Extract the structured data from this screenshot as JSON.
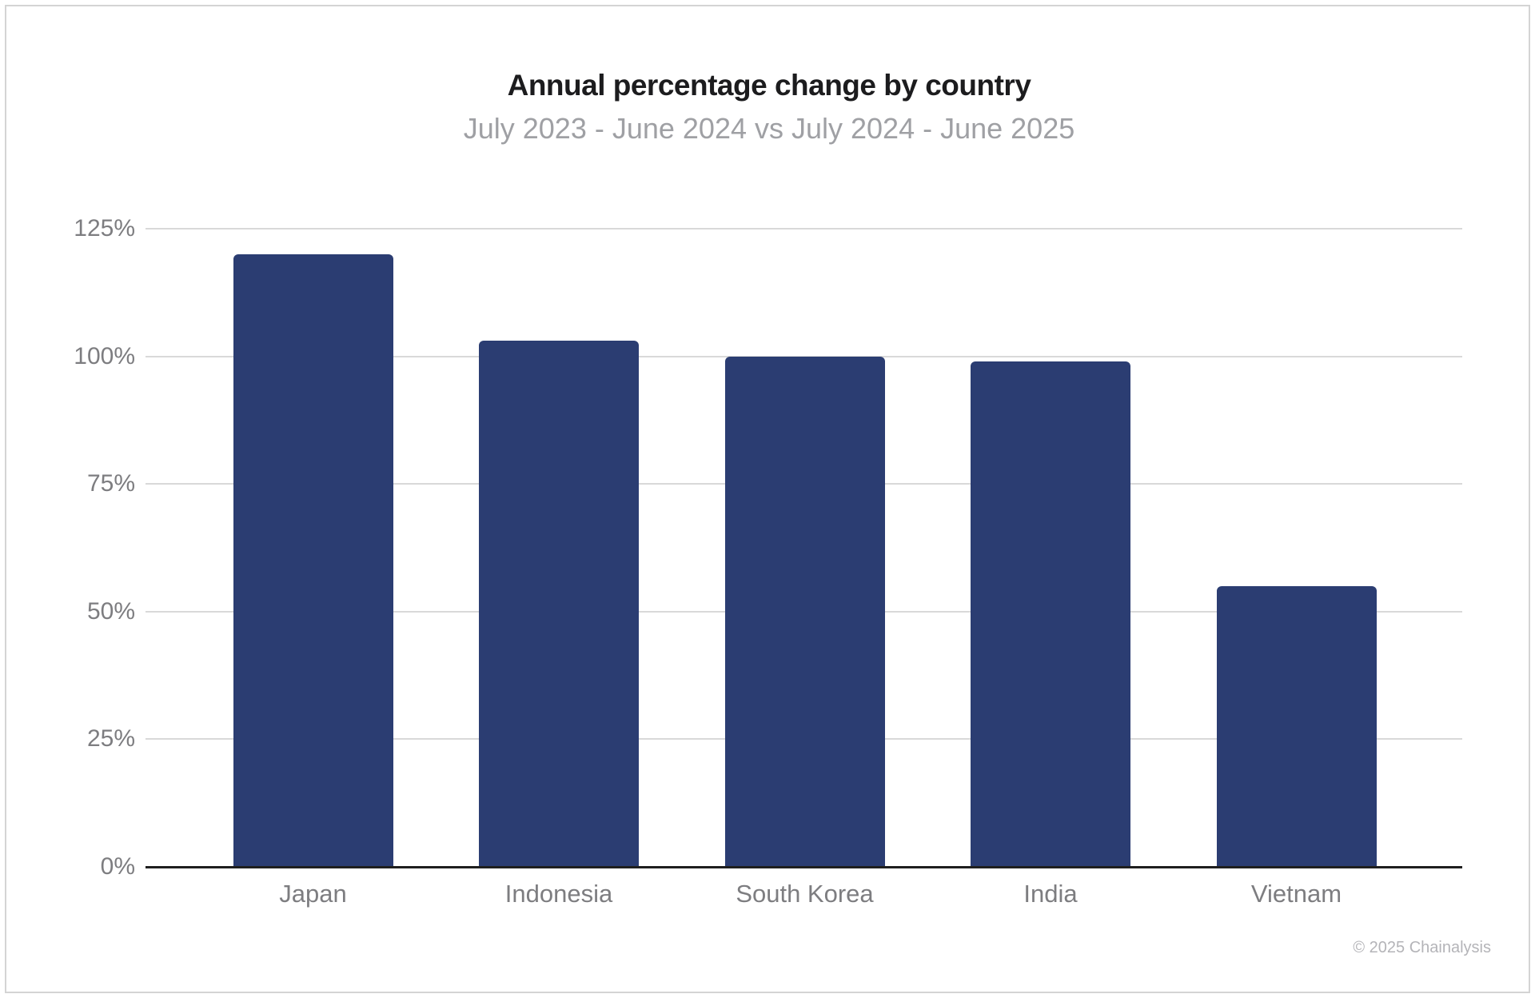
{
  "page": {
    "footer": "© 2025 Chainalysis"
  },
  "chart_data": {
    "type": "bar",
    "title": "Annual percentage change by country",
    "subtitle": "July 2023 - June 2024 vs July 2024 - June 2025",
    "categories": [
      "Japan",
      "Indonesia",
      "South Korea",
      "India",
      "Vietnam"
    ],
    "values": [
      120,
      103,
      100,
      99,
      55
    ],
    "unit": "%",
    "xlabel": "",
    "ylabel": "",
    "ylim": [
      0,
      125
    ],
    "yticks": [
      0,
      25,
      50,
      75,
      100,
      125
    ],
    "ytick_labels": [
      "0%",
      "25%",
      "50%",
      "75%",
      "100%",
      "125%"
    ],
    "grid": true,
    "legend": false,
    "colors": {
      "bar": "#2b3d72",
      "gridline": "#d9d9d9",
      "axis": "#1f1f1f",
      "tick_text": "#7d7d80",
      "title_text": "#1c1c1e",
      "subtitle_text": "#9fa0a4",
      "footer_text": "#b4b4b8",
      "card_border": "#d4d4d4",
      "background": "#ffffff"
    }
  }
}
